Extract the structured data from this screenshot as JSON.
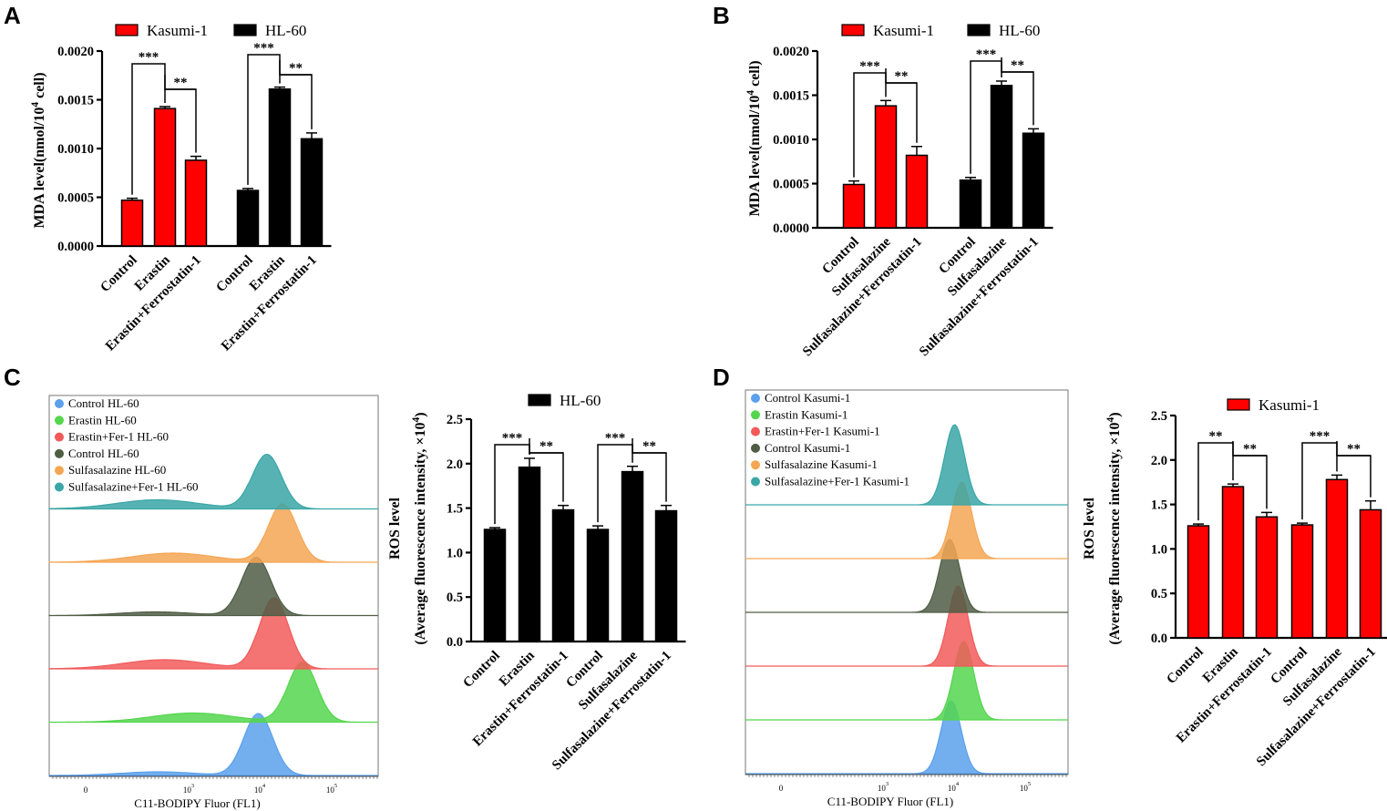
{
  "panels": {
    "A": "A",
    "B": "B",
    "C": "C",
    "D": "D"
  },
  "chart_data": [
    {
      "id": "A",
      "type": "bar",
      "ylabel": "MDA level(nmol/10^4 cell)",
      "ylim": [
        0,
        0.002
      ],
      "yticks": [
        "0.0000",
        "0.0005",
        "0.0010",
        "0.0015",
        "0.0020"
      ],
      "legend": [
        "Kasumi-1",
        "HL-60"
      ],
      "groups": [
        {
          "name": "Kasumi-1",
          "color": "#ff0000",
          "categories": [
            "Control",
            "Erastin",
            "Erastin+Ferrostatin-1"
          ],
          "values": [
            0.00047,
            0.00141,
            0.00088
          ],
          "errors": [
            2e-05,
            2e-05,
            4e-05
          ]
        },
        {
          "name": "HL-60",
          "color": "#000000",
          "categories": [
            "Control",
            "Erastin",
            "Erastin+Ferrostatin-1"
          ],
          "values": [
            0.00057,
            0.00161,
            0.0011
          ],
          "errors": [
            2e-05,
            2e-05,
            6e-05
          ]
        }
      ],
      "significance": [
        [
          "***",
          "**"
        ],
        [
          "***",
          "**"
        ]
      ]
    },
    {
      "id": "B",
      "type": "bar",
      "ylabel": "MDA level(nmol/10^4 cell)",
      "ylim": [
        0,
        0.002
      ],
      "yticks": [
        "0.0000",
        "0.0005",
        "0.0010",
        "0.0015",
        "0.0020"
      ],
      "legend": [
        "Kasumi-1",
        "HL-60"
      ],
      "groups": [
        {
          "name": "Kasumi-1",
          "color": "#ff0000",
          "categories": [
            "Control",
            "Sulfasalazine",
            "Sulfasalazine+Ferrostatin-1"
          ],
          "values": [
            0.00049,
            0.00138,
            0.00082
          ],
          "errors": [
            4e-05,
            6e-05,
            0.0001
          ]
        },
        {
          "name": "HL-60",
          "color": "#000000",
          "categories": [
            "Control",
            "Sulfasalazine",
            "Sulfasalazine+Ferrostatin-1"
          ],
          "values": [
            0.00054,
            0.00161,
            0.00107
          ],
          "errors": [
            3e-05,
            5e-05,
            5e-05
          ]
        }
      ],
      "significance": [
        [
          "***",
          "**"
        ],
        [
          "***",
          "**"
        ]
      ]
    },
    {
      "id": "C-bar",
      "type": "bar",
      "ylabel": "ROS level",
      "ylabel2": "(Average fluorescence intensity, ×10^4)",
      "ylim": [
        0,
        2.5
      ],
      "yticks": [
        "0.0",
        "0.5",
        "1.0",
        "1.5",
        "2.0",
        "2.5"
      ],
      "legend": [
        "HL-60"
      ],
      "groups": [
        {
          "name": "HL-60",
          "color": "#000000",
          "categories": [
            "Control",
            "Erastin",
            "Erastin+Ferrostatin-1"
          ],
          "values": [
            1.26,
            1.96,
            1.48
          ],
          "errors": [
            0.02,
            0.1,
            0.05
          ]
        },
        {
          "name": "HL-60",
          "color": "#000000",
          "categories": [
            "Control",
            "Sulfasalazine",
            "Sulfasalazine+Ferrostatin-1"
          ],
          "values": [
            1.26,
            1.91,
            1.47
          ],
          "errors": [
            0.04,
            0.06,
            0.06
          ]
        }
      ],
      "significance": [
        [
          "***",
          "**"
        ],
        [
          "***",
          "**"
        ]
      ]
    },
    {
      "id": "D-bar",
      "type": "bar",
      "ylabel": "ROS level",
      "ylabel2": "(Average fluorescence intensity, ×10^4)",
      "ylim": [
        0,
        2.5
      ],
      "yticks": [
        "0.0",
        "0.5",
        "1.0",
        "1.5",
        "2.0",
        "2.5"
      ],
      "legend": [
        "Kasumi-1"
      ],
      "groups": [
        {
          "name": "Kasumi-1",
          "color": "#ff0000",
          "categories": [
            "Control",
            "Erastin",
            "Erastin+Ferrostatin-1"
          ],
          "values": [
            1.26,
            1.7,
            1.36
          ],
          "errors": [
            0.02,
            0.03,
            0.05
          ]
        },
        {
          "name": "Kasumi-1",
          "color": "#ff0000",
          "categories": [
            "Control",
            "Sulfasalazine",
            "Sulfasalazine+Ferrostatin-1"
          ],
          "values": [
            1.27,
            1.78,
            1.44
          ],
          "errors": [
            0.02,
            0.05,
            0.1
          ]
        }
      ],
      "significance": [
        [
          "**",
          "**"
        ],
        [
          "***",
          "**"
        ]
      ]
    },
    {
      "id": "C-hist",
      "type": "histogram",
      "xlabel": "C11-BODIPY Fluor (FL1)",
      "xticks": [
        "0",
        "10^3",
        "10^4",
        "10^5"
      ],
      "series": [
        {
          "name": "Control HL-60",
          "color": "#5aa0ec",
          "peak_log10": 3.98
        },
        {
          "name": "Erastin HL-60",
          "color": "#54d64e",
          "peak_log10": 4.6
        },
        {
          "name": "Erastin+Fer-1 HL-60",
          "color": "#f25a5a",
          "peak_log10": 4.2
        },
        {
          "name": "Control HL-60",
          "color": "#4f5d45",
          "peak_log10": 3.95
        },
        {
          "name": "Sulfasalazine HL-60",
          "color": "#f5a653",
          "peak_log10": 4.32
        },
        {
          "name": "Sulfasalazine+Fer-1 HL-60",
          "color": "#3aa6a6",
          "peak_log10": 4.1
        }
      ]
    },
    {
      "id": "D-hist",
      "type": "histogram",
      "xlabel": "C11-BODIPY Fluor (FL1)",
      "xticks": [
        "0",
        "10^3",
        "10^4",
        "10^5"
      ],
      "series": [
        {
          "name": "Control Kasumi-1",
          "color": "#5aa0ec",
          "peak_log10": 3.97
        },
        {
          "name": "Erastin Kasumi-1",
          "color": "#54d64e",
          "peak_log10": 4.15
        },
        {
          "name": "Erastin+Fer-1 Kasumi-1",
          "color": "#f25a5a",
          "peak_log10": 4.07
        },
        {
          "name": "Control Kasumi-1",
          "color": "#4f5d45",
          "peak_log10": 3.95
        },
        {
          "name": "Sulfasalazine Kasumi-1",
          "color": "#f5a653",
          "peak_log10": 4.12
        },
        {
          "name": "Sulfasalazine+Fer-1 Kasumi-1",
          "color": "#3aa6a6",
          "peak_log10": 4.02
        }
      ]
    }
  ]
}
